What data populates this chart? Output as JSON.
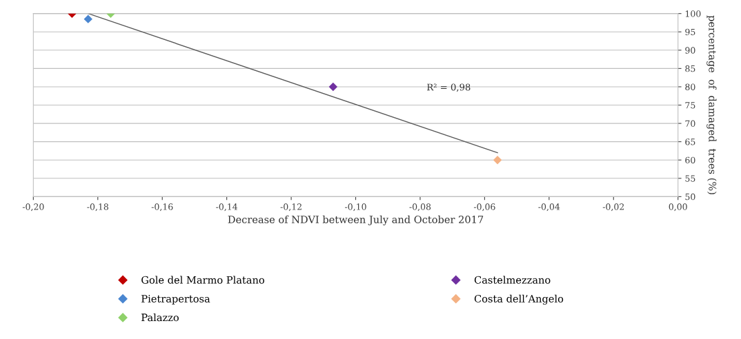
{
  "chart_data": {
    "type": "scatter",
    "xlabel": "Decrease of NDVI between July and October 2017",
    "ylabel": "percentage  of  damaged  trees (%)",
    "xlim": [
      -0.2,
      0.0
    ],
    "xticks": [
      {
        "value": -0.2,
        "label": "-0,20"
      },
      {
        "value": -0.18,
        "label": "-0,18"
      },
      {
        "value": -0.16,
        "label": "-0,16"
      },
      {
        "value": -0.14,
        "label": "-0,14"
      },
      {
        "value": -0.12,
        "label": "-0,12"
      },
      {
        "value": -0.1,
        "label": "-0,10"
      },
      {
        "value": -0.08,
        "label": "-0,08"
      },
      {
        "value": -0.06,
        "label": "-0,06"
      },
      {
        "value": -0.04,
        "label": "-0,04"
      },
      {
        "value": -0.02,
        "label": "-0,02"
      },
      {
        "value": 0.0,
        "label": "0,00"
      }
    ],
    "ylim": [
      50,
      100
    ],
    "yticks": [
      50,
      55,
      60,
      65,
      70,
      75,
      80,
      85,
      90,
      95,
      100
    ],
    "grid": "y",
    "legend": "bottom",
    "marker": "diamond",
    "annotations": [
      "R² = 0,98"
    ],
    "series": [
      {
        "name": "Gole del Marmo Platano",
        "color": "#c00000",
        "x": [
          -0.188
        ],
        "values": [
          100
        ]
      },
      {
        "name": "Pietrapertosa",
        "color": "#4a86d0",
        "x": [
          -0.183
        ],
        "values": [
          98.5
        ]
      },
      {
        "name": "Palazzo",
        "color": "#8fd16a",
        "x": [
          -0.176
        ],
        "values": [
          100
        ]
      },
      {
        "name": "Castelmezzano",
        "color": "#7030a0",
        "x": [
          -0.107
        ],
        "values": [
          80
        ]
      },
      {
        "name": "Costa dell’Angelo",
        "color": "#f4b183",
        "x": [
          -0.056
        ],
        "values": [
          60
        ]
      },
      {
        "type": "line",
        "color": "#595959",
        "x": [
          -0.183,
          -0.056
        ],
        "values": [
          100,
          62
        ],
        "marker": "none",
        "line_style": "solid"
      }
    ]
  }
}
